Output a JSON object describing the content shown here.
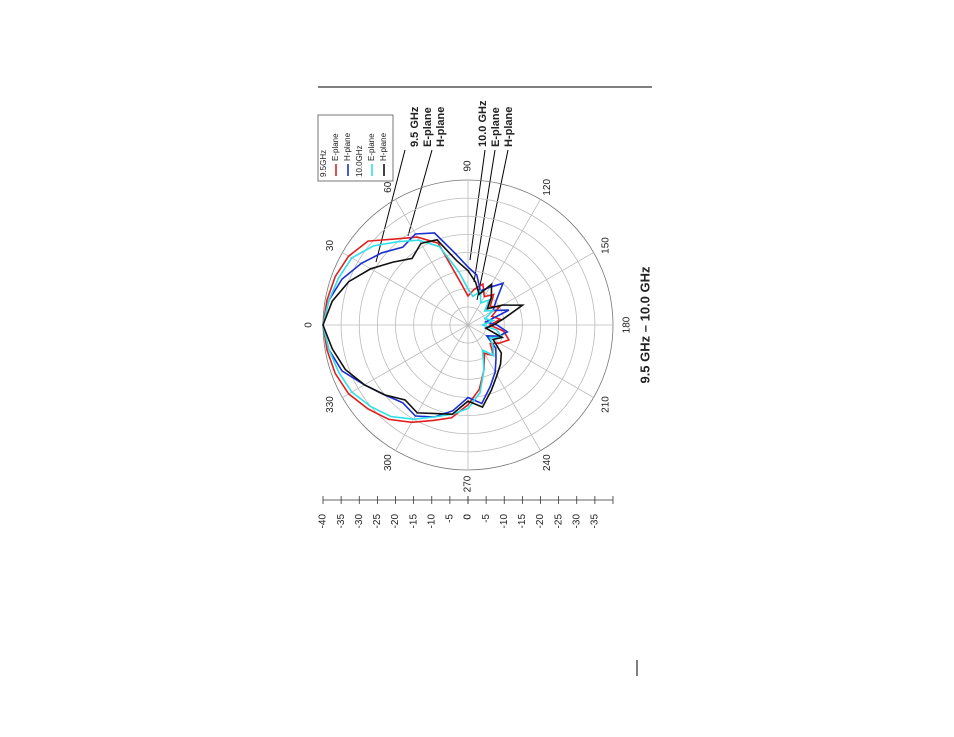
{
  "chart_data": {
    "type": "polar",
    "title": "9.5 GHz – 10.0 GHz",
    "rlim": [
      -40,
      0
    ],
    "rticks": [
      -40,
      -35,
      -30,
      -25,
      -20,
      -15,
      -10,
      -5,
      0
    ],
    "angle_ticks": [
      0,
      30,
      60,
      90,
      120,
      150,
      180,
      210,
      240,
      270,
      300,
      330
    ],
    "angles": [
      0,
      10,
      20,
      30,
      40,
      50,
      60,
      70,
      80,
      90,
      100,
      110,
      120,
      130,
      140,
      150,
      160,
      170,
      180,
      190,
      200,
      210,
      220,
      230,
      240,
      250,
      260,
      270,
      280,
      290,
      300,
      310,
      320,
      330,
      340,
      350
    ],
    "grid": true,
    "groups": [
      {
        "name": "9.5GHz",
        "series": [
          {
            "name": "E-plane",
            "color": "#e02020",
            "values": [
              0,
              -0.5,
              -1,
              -2,
              -4,
              -9,
              -12,
              -16,
              -28,
              -32,
              -30,
              -28,
              -31,
              -29,
              -32,
              -30,
              -33,
              -31,
              -34,
              -30,
              -28,
              -30,
              -32,
              -29,
              -31,
              -27,
              -22,
              -18,
              -14,
              -12,
              -9,
              -6,
              -4,
              -2,
              -1,
              -0.5
            ]
          },
          {
            "name": "H-plane",
            "color": "#1c2fd0",
            "values": [
              0,
              -1,
              -3,
              -6,
              -9,
              -12,
              -11,
              -13,
              -20,
              -24,
              -26,
              -30,
              -28,
              -25,
              -30,
              -32,
              -28,
              -35,
              -32,
              -29,
              -31,
              -34,
              -30,
              -28,
              -25,
              -22,
              -18,
              -20,
              -16,
              -13,
              -11,
              -12,
              -10,
              -7,
              -3,
              -1
            ]
          }
        ]
      },
      {
        "name": "10.0GHz",
        "series": [
          {
            "name": "E-plane",
            "color": "#30e0e8",
            "values": [
              0,
              -1,
              -2,
              -3,
              -6,
              -10,
              -13,
              -17,
              -25,
              -30,
              -32,
              -30,
              -33,
              -31,
              -34,
              -32,
              -35,
              -33,
              -36,
              -32,
              -30,
              -33,
              -31,
              -29,
              -32,
              -27,
              -21,
              -17,
              -15,
              -13,
              -10,
              -7,
              -5,
              -3,
              -2,
              -1
            ]
          },
          {
            "name": "H-plane",
            "color": "#111111",
            "values": [
              0,
              -2,
              -5,
              -9,
              -13,
              -16,
              -14,
              -15,
              -22,
              -25,
              -28,
              -31,
              -27,
              -30,
              -33,
              -29,
              -24,
              -30,
              -33,
              -35,
              -30,
              -32,
              -28,
              -26,
              -24,
              -21,
              -17,
              -19,
              -15,
              -14,
              -12,
              -13,
              -10,
              -7,
              -4,
              -2
            ]
          }
        ]
      }
    ],
    "annotations": [
      {
        "lines": [
          "9.5 GHz",
          "E-plane",
          "H-plane"
        ]
      },
      {
        "lines": [
          "10.0 GHz",
          "E-plane",
          "H-plane"
        ]
      }
    ]
  }
}
